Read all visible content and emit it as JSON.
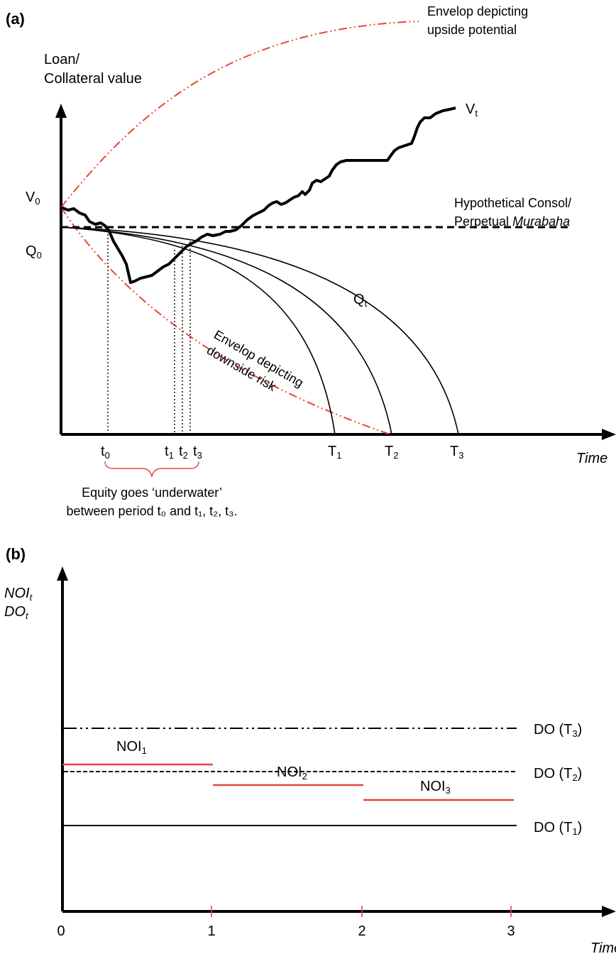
{
  "panel_a": {
    "label": "(a)",
    "y_axis_line1": "Loan/",
    "y_axis_line2": "Collateral value",
    "x_axis": "Time",
    "v0": {
      "main": "V",
      "sub": "0"
    },
    "q0": {
      "main": "Q",
      "sub": "0"
    },
    "vt": {
      "main": "V",
      "sub": "t"
    },
    "qt": {
      "main": "Q",
      "sub": "t"
    },
    "upside_line1": "Envelop depicting",
    "upside_line2": "upside potential",
    "downside_line1": "Envelop depicting",
    "downside_line2": "downside risk",
    "consol_line1": "Hypothetical Consol/",
    "consol_line2_prefix": "Perpetual ",
    "consol_line2_italic": "Murabaha",
    "ticks": {
      "t0": {
        "main": "t",
        "sub": "0"
      },
      "t1": {
        "main": "t",
        "sub": "1"
      },
      "t2": {
        "main": "t",
        "sub": "2"
      },
      "t3": {
        "main": "t",
        "sub": "3"
      },
      "T1": {
        "main": "T",
        "sub": "1"
      },
      "T2": {
        "main": "T",
        "sub": "2"
      },
      "T3": {
        "main": "T",
        "sub": "3"
      }
    },
    "underwater_line1": "Equity goes ‘underwater’",
    "underwater_line2": "between period t₀ and t₁, t₂, t₃."
  },
  "panel_b": {
    "label": "(b)",
    "y_axis_line1": {
      "main": "NOI",
      "sub": "t"
    },
    "y_axis_line2": {
      "main": "DO",
      "sub": "t"
    },
    "x_axis": "Time",
    "x_ticks": [
      "0",
      "1",
      "2",
      "3"
    ],
    "noi": [
      {
        "main": "NOI",
        "sub": "1"
      },
      {
        "main": "NOI",
        "sub": "2"
      },
      {
        "main": "NOI",
        "sub": "3"
      }
    ],
    "do_labels": [
      {
        "prefix": "DO (T",
        "sub": "3",
        "suffix": ")"
      },
      {
        "prefix": "DO (T",
        "sub": "2",
        "suffix": ")"
      },
      {
        "prefix": "DO (T",
        "sub": "1",
        "suffix": ")"
      }
    ]
  },
  "colors": {
    "red": "#e8473a",
    "black": "#000000"
  }
}
